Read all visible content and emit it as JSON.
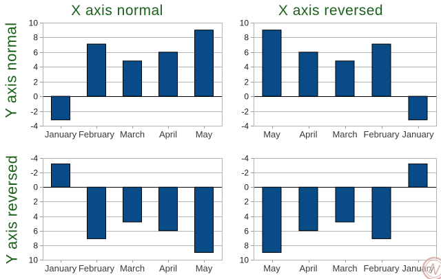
{
  "column_titles": [
    {
      "label": "X axis normal"
    },
    {
      "label": "X axis reversed"
    }
  ],
  "row_labels": [
    {
      "label": "Y axis normal"
    },
    {
      "label": "Y axis reversed"
    }
  ],
  "colors": {
    "heading_green": "#1a611a",
    "bar": "#084b87",
    "bar_border": "#000000",
    "grid": "#b3b3b3",
    "plot_border": "#b3b3b3",
    "zero_line": "#000000",
    "tick_mark": "#9a9a9a",
    "tick_label": "#1a1a1a",
    "category_label": "#3a3a3a",
    "watermark": "#d8a7a7"
  },
  "watermark": {
    "letter": "N"
  },
  "chart_data": [
    {
      "id": "top-left",
      "type": "bar",
      "title": "X axis normal",
      "row": "Y axis normal",
      "categories": [
        "January",
        "February",
        "March",
        "April",
        "May"
      ],
      "values": [
        -3.2,
        7.1,
        4.8,
        6,
        9
      ],
      "ylim": [
        -4,
        10
      ],
      "yticks": [
        -4,
        -2,
        0,
        2,
        4,
        6,
        8,
        10
      ],
      "x_reversed": false,
      "y_reversed": false,
      "grid": true,
      "legend": "none"
    },
    {
      "id": "top-right",
      "type": "bar",
      "title": "X axis reversed",
      "row": "Y axis normal",
      "categories": [
        "May",
        "April",
        "March",
        "February",
        "January"
      ],
      "values": [
        9,
        6,
        4.8,
        7.1,
        -3.2
      ],
      "ylim": [
        -4,
        10
      ],
      "yticks": [
        -4,
        -2,
        0,
        2,
        4,
        6,
        8,
        10
      ],
      "x_reversed": true,
      "y_reversed": false,
      "grid": true,
      "legend": "none"
    },
    {
      "id": "bottom-left",
      "type": "bar",
      "title": "X axis normal",
      "row": "Y axis reversed",
      "categories": [
        "January",
        "February",
        "March",
        "April",
        "May"
      ],
      "values": [
        -3.2,
        7.1,
        4.8,
        6,
        9
      ],
      "ylim": [
        -4,
        10
      ],
      "yticks": [
        -4,
        -2,
        0,
        2,
        4,
        6,
        8,
        10
      ],
      "x_reversed": false,
      "y_reversed": true,
      "grid": true,
      "legend": "none"
    },
    {
      "id": "bottom-right",
      "type": "bar",
      "title": "X axis reversed",
      "row": "Y axis reversed",
      "categories": [
        "May",
        "April",
        "March",
        "February",
        "January"
      ],
      "values": [
        9,
        6,
        4.8,
        7.1,
        -3.2
      ],
      "ylim": [
        -4,
        10
      ],
      "yticks": [
        -4,
        -2,
        0,
        2,
        4,
        6,
        8,
        10
      ],
      "x_reversed": true,
      "y_reversed": true,
      "grid": true,
      "legend": "none"
    }
  ]
}
